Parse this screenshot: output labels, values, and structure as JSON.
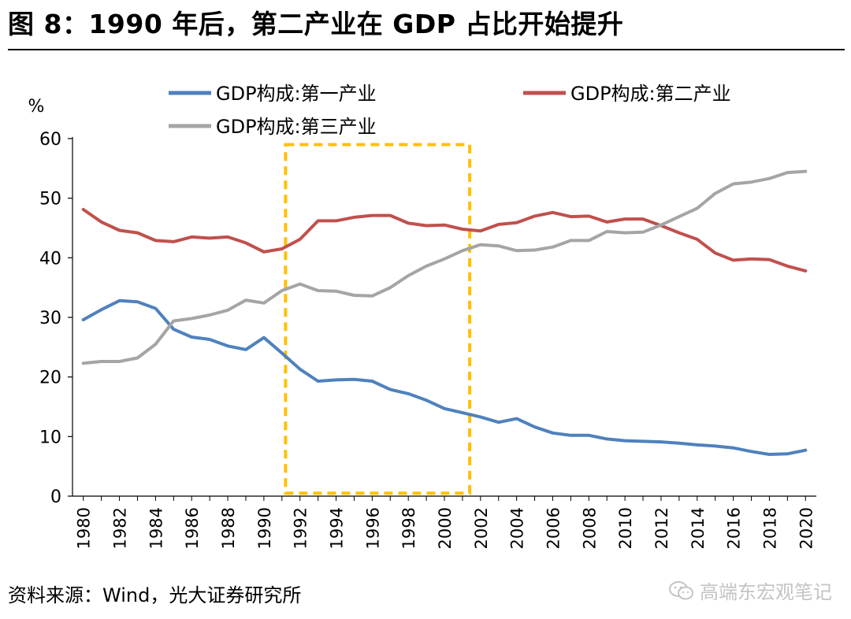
{
  "title": "图 8：1990 年后，第二产业在 GDP 占比开始提升",
  "source": "资料来源：Wind，光大证券研究所",
  "watermark": "高端东宏观笔记",
  "chart_data": {
    "type": "line",
    "title": "",
    "ylabel": "%",
    "xlabel": "",
    "ylim": [
      0,
      60
    ],
    "yticks": [
      "0",
      "10",
      "20",
      "30",
      "40",
      "50",
      "60"
    ],
    "xticks": [
      "1980",
      "1982",
      "1984",
      "1986",
      "1988",
      "1990",
      "1992",
      "1994",
      "1996",
      "1998",
      "2000",
      "2002",
      "2004",
      "2006",
      "2008",
      "2010",
      "2012",
      "2014",
      "2016",
      "2018",
      "2020"
    ],
    "grid": false,
    "legend_position": "top",
    "x": [
      1980,
      1981,
      1982,
      1983,
      1984,
      1985,
      1986,
      1987,
      1988,
      1989,
      1990,
      1991,
      1992,
      1993,
      1994,
      1995,
      1996,
      1997,
      1998,
      1999,
      2000,
      2001,
      2002,
      2003,
      2004,
      2005,
      2006,
      2007,
      2008,
      2009,
      2010,
      2011,
      2012,
      2013,
      2014,
      2015,
      2016,
      2017,
      2018,
      2019,
      2020
    ],
    "series": [
      {
        "name": "GDP构成:第一产业",
        "color": "#4f81bd",
        "values": [
          29.6,
          31.3,
          32.8,
          32.6,
          31.5,
          28.0,
          26.7,
          26.3,
          25.2,
          24.6,
          26.6,
          24.0,
          21.3,
          19.3,
          19.5,
          19.6,
          19.3,
          17.9,
          17.2,
          16.1,
          14.7,
          14.0,
          13.3,
          12.4,
          13.0,
          11.6,
          10.6,
          10.2,
          10.2,
          9.6,
          9.3,
          9.2,
          9.1,
          8.9,
          8.6,
          8.4,
          8.1,
          7.5,
          7.0,
          7.1,
          7.7
        ]
      },
      {
        "name": "GDP构成:第二产业",
        "color": "#c0504d",
        "values": [
          48.1,
          46.0,
          44.6,
          44.2,
          42.9,
          42.7,
          43.5,
          43.3,
          43.5,
          42.5,
          41.0,
          41.5,
          43.1,
          46.2,
          46.2,
          46.8,
          47.1,
          47.1,
          45.8,
          45.4,
          45.5,
          44.8,
          44.5,
          45.6,
          45.9,
          47.0,
          47.6,
          46.9,
          47.0,
          46.0,
          46.5,
          46.5,
          45.4,
          44.2,
          43.1,
          40.8,
          39.6,
          39.8,
          39.7,
          38.6,
          37.8
        ]
      },
      {
        "name": "GDP构成:第三产业",
        "color": "#a5a5a5",
        "values": [
          22.3,
          22.6,
          22.6,
          23.2,
          25.5,
          29.4,
          29.8,
          30.4,
          31.2,
          32.9,
          32.4,
          34.5,
          35.6,
          34.5,
          34.4,
          33.7,
          33.6,
          35.0,
          37.0,
          38.6,
          39.8,
          41.2,
          42.2,
          42.0,
          41.2,
          41.3,
          41.8,
          42.9,
          42.9,
          44.4,
          44.2,
          44.3,
          45.5,
          46.9,
          48.3,
          50.8,
          52.4,
          52.7,
          53.3,
          54.3,
          54.5
        ]
      }
    ],
    "annotations": [
      {
        "type": "dashed-box",
        "x_range": [
          1991.2,
          2001.4
        ],
        "y_range": [
          0.5,
          59.0
        ],
        "color": "#ffc000"
      }
    ]
  }
}
